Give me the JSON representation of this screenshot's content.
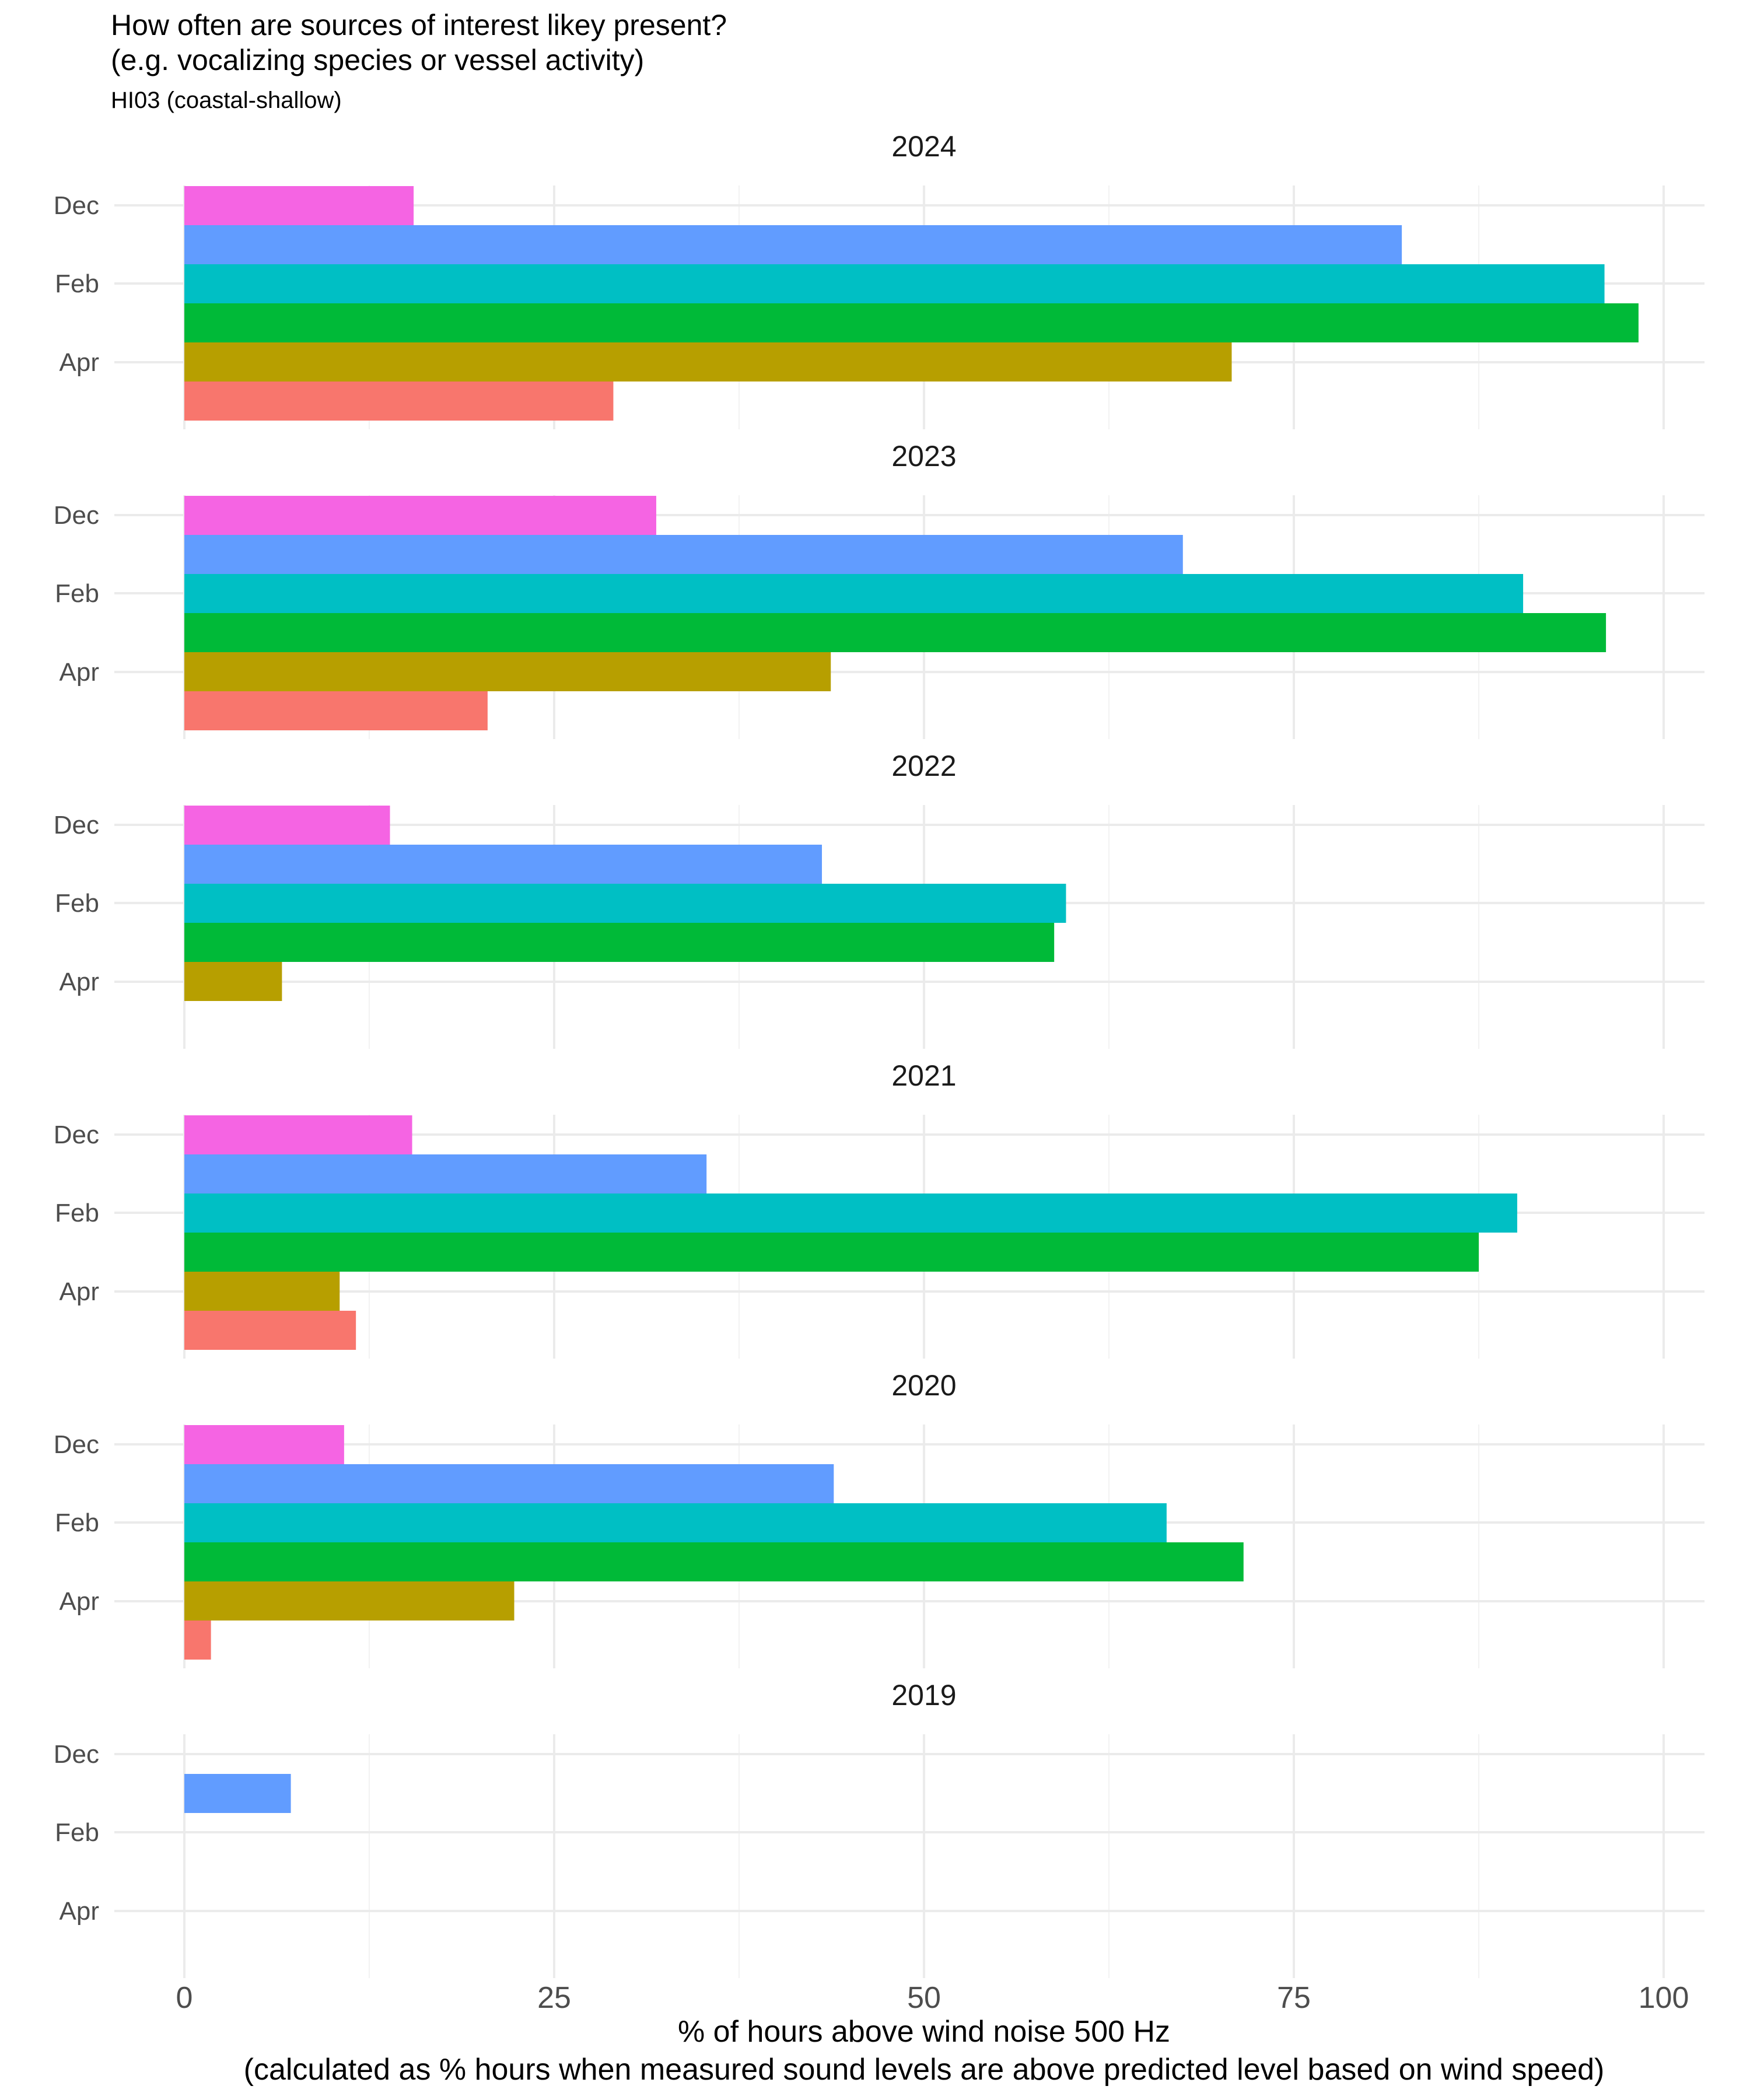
{
  "chart_data": {
    "type": "bar",
    "title": "How often are sources of interest likey present?",
    "title_line2": "(e.g. vocalizing species or vessel activity)",
    "subtitle": "HI03 (coastal-shallow)",
    "xlabel": "% of hours above wind noise 500 Hz",
    "xlabel_line2": "(calculated as % hours when measured sound levels are above predicted level based on wind speed)",
    "xlim": [
      0,
      100
    ],
    "x_ticks": [
      "0",
      "25",
      "50",
      "75",
      "100"
    ],
    "y_tick_labels": [
      "Dec",
      "Feb",
      "Apr"
    ],
    "grid": true,
    "legend": "none",
    "colors": [
      "#F8766D",
      "#B79F00",
      "#00BA38",
      "#00BFC4",
      "#619CFF",
      "#F564E3"
    ],
    "panels": [
      {
        "year": "2024",
        "values": [
          29,
          70.8,
          98.3,
          96,
          82.3,
          15.5
        ]
      },
      {
        "year": "2023",
        "values": [
          20.5,
          43.7,
          96.1,
          90.5,
          67.5,
          31.9
        ]
      },
      {
        "year": "2022",
        "values": [
          null,
          6.6,
          58.8,
          59.6,
          43.1,
          13.9
        ]
      },
      {
        "year": "2021",
        "values": [
          11.6,
          10.5,
          87.5,
          90.1,
          35.3,
          15.4
        ]
      },
      {
        "year": "2020",
        "values": [
          1.8,
          22.3,
          71.6,
          66.4,
          43.9,
          10.8
        ]
      },
      {
        "year": "2019",
        "values": [
          null,
          null,
          null,
          null,
          7.2,
          null
        ]
      }
    ]
  }
}
